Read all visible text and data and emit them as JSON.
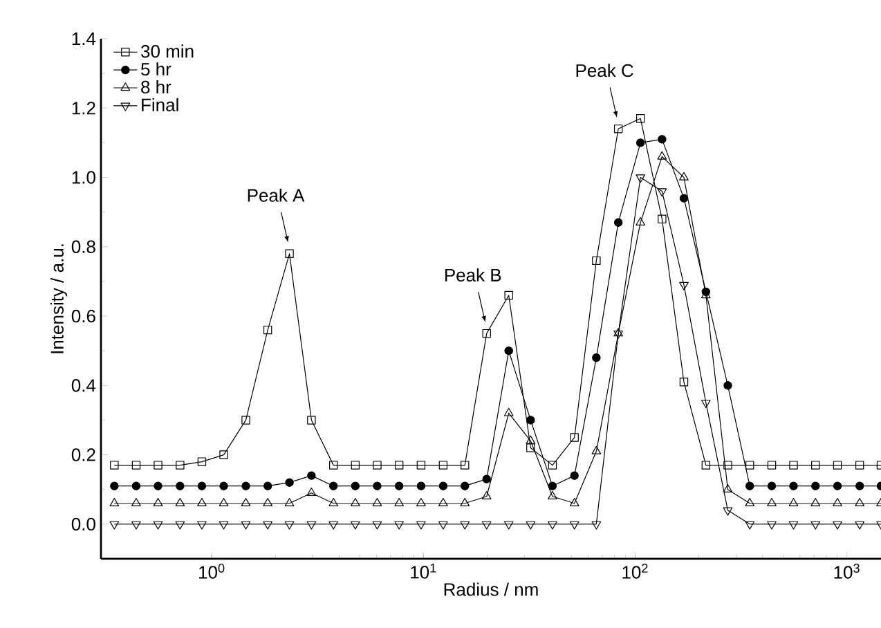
{
  "chart_data": {
    "type": "line",
    "xlabel": "Radius / nm",
    "ylabel": "Intensity / a.u.",
    "log": "x",
    "grid": false,
    "legend": "top left",
    "line_style": "solid",
    "x": [
      0.347,
      0.44,
      0.558,
      0.709,
      0.899,
      1.14,
      1.45,
      1.84,
      2.33,
      2.96,
      3.76,
      4.77,
      6.05,
      7.68,
      9.75,
      12.4,
      15.7,
      19.9,
      25.3,
      32.1,
      40.7,
      51.7,
      65.6,
      83.3,
      106,
      134,
      170,
      216,
      274,
      348,
      442,
      560,
      711,
      903,
      1150,
      1450
    ],
    "xlim": [
      0.3,
      1450
    ],
    "ylim": [
      -0.1,
      1.4
    ],
    "xticks": [
      {
        "value": 1,
        "label": "10$^{0}$"
      },
      {
        "value": 10,
        "label": "10$^{1}$"
      },
      {
        "value": 100,
        "label": "10$^{2}$"
      },
      {
        "value": 1000,
        "label": "10$^{3}$"
      }
    ],
    "yticks": [
      {
        "value": 0,
        "label": "0.0"
      },
      {
        "value": 0.2,
        "label": "0.2"
      },
      {
        "value": 0.4,
        "label": "0.4"
      },
      {
        "value": 0.6,
        "label": "0.6"
      },
      {
        "value": 0.8,
        "label": "0.8"
      },
      {
        "value": 1.0,
        "label": "1.0"
      },
      {
        "value": 1.2,
        "label": "1.2"
      },
      {
        "value": 1.4,
        "label": "1.4"
      }
    ],
    "series": [
      {
        "name": "30 min",
        "color": "#000000",
        "marker": "square",
        "values": [
          0.17,
          0.17,
          0.17,
          0.17,
          0.18,
          0.2,
          0.3,
          0.56,
          0.78,
          0.3,
          0.17,
          0.17,
          0.17,
          0.17,
          0.17,
          0.17,
          0.17,
          0.55,
          0.66,
          0.22,
          0.17,
          0.25,
          0.76,
          1.14,
          1.17,
          0.88,
          0.41,
          0.17,
          0.17,
          0.17,
          0.17,
          0.17,
          0.17,
          0.17,
          0.17,
          0.17
        ]
      },
      {
        "name": "5 hr",
        "color": "#000000",
        "marker": "circle",
        "values": [
          0.11,
          0.11,
          0.11,
          0.11,
          0.11,
          0.11,
          0.11,
          0.11,
          0.12,
          0.14,
          0.11,
          0.11,
          0.11,
          0.11,
          0.11,
          0.11,
          0.11,
          0.13,
          0.5,
          0.3,
          0.11,
          0.14,
          0.48,
          0.87,
          1.1,
          1.11,
          0.94,
          0.67,
          0.4,
          0.11,
          0.11,
          0.11,
          0.11,
          0.11,
          0.11,
          0.11
        ]
      },
      {
        "name": "8 hr",
        "color": "#000000",
        "marker": "triangle",
        "values": [
          0.06,
          0.06,
          0.06,
          0.06,
          0.06,
          0.06,
          0.06,
          0.06,
          0.06,
          0.09,
          0.06,
          0.06,
          0.06,
          0.06,
          0.06,
          0.06,
          0.06,
          0.08,
          0.32,
          0.24,
          0.08,
          0.06,
          0.21,
          0.55,
          0.87,
          1.06,
          1.0,
          0.66,
          0.1,
          0.06,
          0.06,
          0.06,
          0.06,
          0.06,
          0.06,
          0.06
        ]
      },
      {
        "name": "Final",
        "color": "#000000",
        "marker": "triangle-down",
        "values": [
          0,
          0,
          0,
          0,
          0,
          0,
          0,
          0,
          0,
          0,
          0,
          0,
          0,
          0,
          0,
          0,
          0,
          0,
          0,
          0,
          0,
          0,
          0,
          0.55,
          1.0,
          0.96,
          0.69,
          0.35,
          0.04,
          0,
          0,
          0,
          0,
          0,
          0,
          0
        ]
      }
    ],
    "annotations": [
      {
        "text": "Peak A",
        "x": 2.33,
        "y": 0.78
      },
      {
        "text": "Peak B",
        "x": 19.9,
        "y": 0.55
      },
      {
        "text": "Peak C",
        "x": 83.3,
        "y": 1.14
      }
    ]
  }
}
